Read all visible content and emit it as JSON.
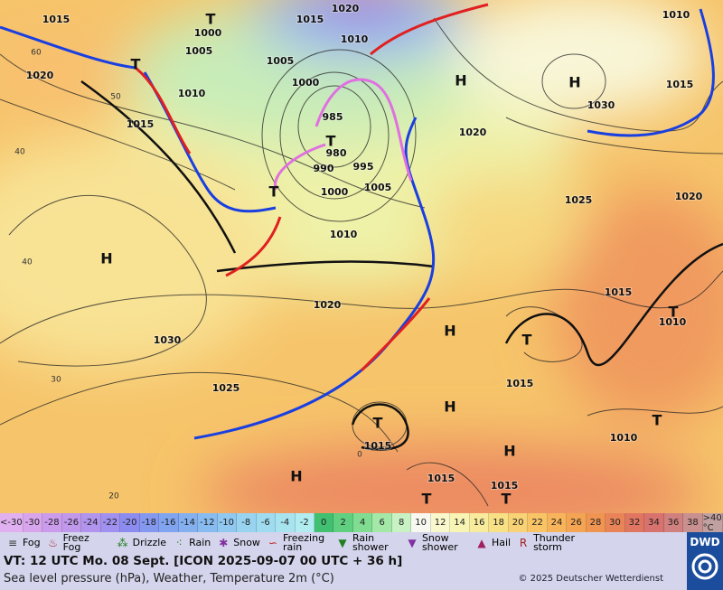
{
  "map": {
    "isobar_labels": [
      "1015",
      "1020",
      "1015",
      "1010",
      "1005",
      "1005",
      "1000",
      "1010",
      "1000",
      "1020",
      "1015",
      "985",
      "980",
      "990",
      "995",
      "1000",
      "1005",
      "1010",
      "1020",
      "1025",
      "1020",
      "1010",
      "1015",
      "1030",
      "1020",
      "1030",
      "1025",
      "1015",
      "1010",
      "1015",
      "1015",
      "1015",
      "1015",
      "1010"
    ],
    "centers": [
      "H",
      "H",
      "H",
      "T",
      "T",
      "T",
      "T",
      "H",
      "T",
      "H",
      "T",
      "H",
      "H",
      "T",
      "T",
      "T",
      "T"
    ],
    "grid_labels": [
      "50",
      "40",
      "40",
      "30",
      "20",
      "60",
      "0"
    ]
  },
  "scale": [
    {
      "label": "<-30",
      "color": "#e0b0f0"
    },
    {
      "label": "-30",
      "color": "#d8a4ec"
    },
    {
      "label": "-28",
      "color": "#cc9cec"
    },
    {
      "label": "-26",
      "color": "#c098ec"
    },
    {
      "label": "-24",
      "color": "#b094ee"
    },
    {
      "label": "-22",
      "color": "#a090f0"
    },
    {
      "label": "-20",
      "color": "#8c8cf0"
    },
    {
      "label": "-18",
      "color": "#8498f0"
    },
    {
      "label": "-16",
      "color": "#80a4f0"
    },
    {
      "label": "-14",
      "color": "#84b0f0"
    },
    {
      "label": "-12",
      "color": "#88bcf0"
    },
    {
      "label": "-10",
      "color": "#90c8f0"
    },
    {
      "label": "-8",
      "color": "#98d4f0"
    },
    {
      "label": "-6",
      "color": "#a0dcf0"
    },
    {
      "label": "-4",
      "color": "#a8e4f0"
    },
    {
      "label": "-2",
      "color": "#b0ecf0"
    },
    {
      "label": "0",
      "color": "#40c070"
    },
    {
      "label": "2",
      "color": "#60d080"
    },
    {
      "label": "4",
      "color": "#80dc90"
    },
    {
      "label": "6",
      "color": "#a4e8a8"
    },
    {
      "label": "8",
      "color": "#c8f2c4"
    },
    {
      "label": "10",
      "color": "#f8f8f0"
    },
    {
      "label": "12",
      "color": "#f8f8cc"
    },
    {
      "label": "14",
      "color": "#f8f4b4"
    },
    {
      "label": "16",
      "color": "#f8ec9c"
    },
    {
      "label": "18",
      "color": "#f8e084"
    },
    {
      "label": "20",
      "color": "#f8d274"
    },
    {
      "label": "22",
      "color": "#f8c466"
    },
    {
      "label": "24",
      "color": "#f8b45a"
    },
    {
      "label": "26",
      "color": "#f4a452"
    },
    {
      "label": "28",
      "color": "#f09452"
    },
    {
      "label": "30",
      "color": "#e88458"
    },
    {
      "label": "32",
      "color": "#e07662"
    },
    {
      "label": "34",
      "color": "#d8726e"
    },
    {
      "label": "36",
      "color": "#d0807e"
    },
    {
      "label": "38",
      "color": "#c8908e"
    },
    {
      "label": ">40 °C",
      "color": "#c0a0a0"
    }
  ],
  "legend": [
    "Fog",
    "Freez Fog",
    "Drizzle",
    "Rain",
    "Snow",
    "Freezing rain",
    "Rain shower",
    "Snow shower",
    "Hail",
    "Thunder storm"
  ],
  "footer": {
    "valid_time": "VT: 12 UTC Mo.  08 Sept. [ICON 2025-09-07  00 UTC + 36 h]",
    "subtitle": "Sea level pressure (hPa), Weather, Temperature 2m (°C)",
    "copyright": "© 2025 Deutscher Wetterdienst",
    "logo": "DWD"
  }
}
